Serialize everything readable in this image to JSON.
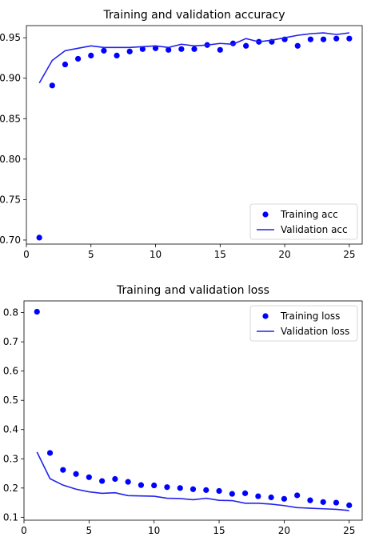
{
  "chart_data": [
    {
      "type": "line",
      "title": "Training and validation accuracy",
      "xlabel": "",
      "ylabel": "",
      "xlim": [
        0,
        26
      ],
      "ylim": [
        0.695,
        0.965
      ],
      "xticks": [
        0,
        5,
        10,
        15,
        20,
        25
      ],
      "xtick_labels": [
        "0",
        "5",
        "10",
        "15",
        "20",
        "25"
      ],
      "yticks": [
        0.7,
        0.75,
        0.8,
        0.85,
        0.9,
        0.95
      ],
      "ytick_labels": [
        "0.70",
        "0.75",
        "0.80",
        "0.85",
        "0.90",
        "0.95"
      ],
      "legend_position": "bottom-right",
      "grid": false,
      "x": [
        1,
        2,
        3,
        4,
        5,
        6,
        7,
        8,
        9,
        10,
        11,
        12,
        13,
        14,
        15,
        16,
        17,
        18,
        19,
        20,
        21,
        22,
        23,
        24,
        25
      ],
      "series": [
        {
          "name": "Training acc",
          "style": "points",
          "color": "#0000ff",
          "values": [
            0.703,
            0.891,
            0.917,
            0.924,
            0.928,
            0.934,
            0.928,
            0.933,
            0.936,
            0.937,
            0.935,
            0.936,
            0.936,
            0.941,
            0.935,
            0.943,
            0.94,
            0.945,
            0.945,
            0.948,
            0.94,
            0.948,
            0.948,
            0.949,
            0.949
          ]
        },
        {
          "name": "Validation acc",
          "style": "line",
          "color": "#2222ee",
          "values": [
            0.894,
            0.922,
            0.934,
            0.937,
            0.94,
            0.938,
            0.938,
            0.938,
            0.939,
            0.94,
            0.938,
            0.942,
            0.94,
            0.941,
            0.943,
            0.942,
            0.949,
            0.945,
            0.947,
            0.95,
            0.953,
            0.955,
            0.956,
            0.954,
            0.956
          ]
        }
      ]
    },
    {
      "type": "line",
      "title": "Training and validation loss",
      "xlabel": "",
      "ylabel": "",
      "xlim": [
        0,
        26
      ],
      "ylim": [
        0.09,
        0.84
      ],
      "xticks": [
        0,
        5,
        10,
        15,
        20,
        25
      ],
      "xtick_labels": [
        "0",
        "5",
        "10",
        "15",
        "20",
        "25"
      ],
      "yticks": [
        0.1,
        0.2,
        0.3,
        0.4,
        0.5,
        0.6,
        0.7,
        0.8
      ],
      "ytick_labels": [
        "0.1",
        "0.2",
        "0.3",
        "0.4",
        "0.5",
        "0.6",
        "0.7",
        "0.8"
      ],
      "legend_position": "top-right",
      "grid": false,
      "x": [
        1,
        2,
        3,
        4,
        5,
        6,
        7,
        8,
        9,
        10,
        11,
        12,
        13,
        14,
        15,
        16,
        17,
        18,
        19,
        20,
        21,
        22,
        23,
        24,
        25
      ],
      "series": [
        {
          "name": "Training loss",
          "style": "points",
          "color": "#0000ff",
          "values": [
            0.803,
            0.32,
            0.262,
            0.248,
            0.237,
            0.224,
            0.231,
            0.221,
            0.21,
            0.209,
            0.203,
            0.2,
            0.196,
            0.193,
            0.19,
            0.18,
            0.182,
            0.172,
            0.168,
            0.163,
            0.175,
            0.158,
            0.152,
            0.15,
            0.141
          ]
        },
        {
          "name": "Validation loss",
          "style": "line",
          "color": "#2222ee",
          "values": [
            0.323,
            0.232,
            0.21,
            0.196,
            0.187,
            0.182,
            0.184,
            0.174,
            0.173,
            0.172,
            0.165,
            0.164,
            0.16,
            0.165,
            0.158,
            0.157,
            0.148,
            0.148,
            0.145,
            0.14,
            0.133,
            0.131,
            0.129,
            0.127,
            0.123
          ]
        }
      ]
    }
  ]
}
